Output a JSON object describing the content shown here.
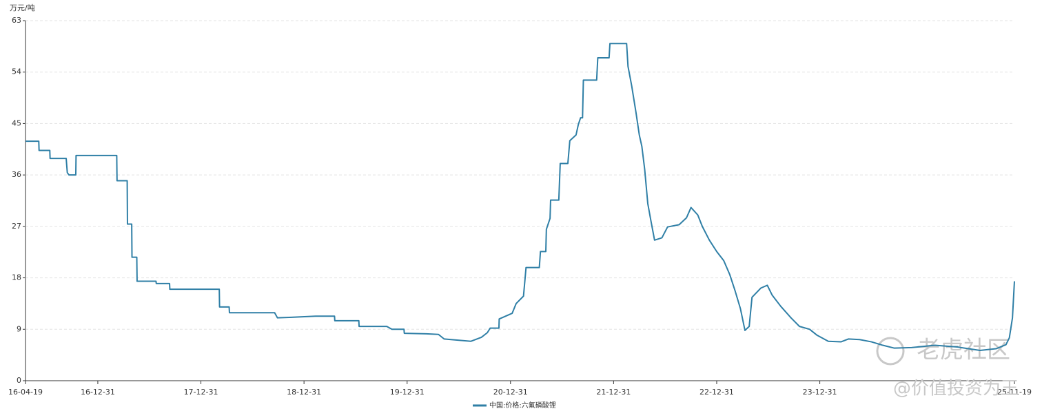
{
  "chart_data": {
    "type": "line",
    "y_label": "万元/吨",
    "x": [
      "16-04-19",
      "16-06-05",
      "16-06-06",
      "16-07-14",
      "16-07-15",
      "16-09-10",
      "16-09-14",
      "16-09-20",
      "16-10-14",
      "16-10-15",
      "17-03-08",
      "17-03-09",
      "17-04-14",
      "17-04-15",
      "17-04-30",
      "17-05-01",
      "17-05-18",
      "17-05-19",
      "17-07-25",
      "17-07-26",
      "17-09-11",
      "17-09-12",
      "18-03-06",
      "18-03-07",
      "18-04-10",
      "18-04-11",
      "18-09-18",
      "18-09-28",
      "18-11-17",
      "19-02-10",
      "19-04-18",
      "19-04-19",
      "19-07-13",
      "19-07-14",
      "19-10-20",
      "19-11-07",
      "19-12-20",
      "19-12-21",
      "20-03-08",
      "20-04-20",
      "20-05-10",
      "20-08-13",
      "20-09-19",
      "20-10-10",
      "20-10-20",
      "20-11-20",
      "20-11-21",
      "21-01-06",
      "21-01-20",
      "21-02-15",
      "21-02-24",
      "21-04-12",
      "21-04-16",
      "21-05-05",
      "21-05-07",
      "21-05-20",
      "21-05-22",
      "21-06-20",
      "21-06-25",
      "21-07-22",
      "21-07-29",
      "21-08-20",
      "21-08-28",
      "21-09-05",
      "21-09-12",
      "21-09-15",
      "21-11-01",
      "21-11-05",
      "21-12-15",
      "21-12-18",
      "22-02-15",
      "22-02-20",
      "22-03-05",
      "22-03-20",
      "22-04-01",
      "22-04-10",
      "22-04-20",
      "22-05-01",
      "22-05-12",
      "22-05-25",
      "22-06-20",
      "22-07-10",
      "22-08-20",
      "22-09-15",
      "22-10-01",
      "22-10-25",
      "22-11-10",
      "22-12-05",
      "22-12-31",
      "23-01-25",
      "23-02-15",
      "23-03-05",
      "23-03-25",
      "23-04-10",
      "23-04-25",
      "23-05-05",
      "23-06-05",
      "23-06-28",
      "23-07-15",
      "23-08-15",
      "23-09-20",
      "23-10-20",
      "23-11-25",
      "23-12-20",
      "24-01-30",
      "24-03-15",
      "24-04-10",
      "24-05-20",
      "24-07-01",
      "24-08-10",
      "24-09-20",
      "24-11-20",
      "25-02-10",
      "25-05-01",
      "25-07-20",
      "25-09-15",
      "25-10-20",
      "25-11-01",
      "25-11-12",
      "25-11-19"
    ],
    "series": [
      {
        "name": "中国:价格:六氟磷酸锂",
        "color": "#2f7fa6",
        "values": [
          41.9,
          41.9,
          40.3,
          40.3,
          38.9,
          38.9,
          36.4,
          36.0,
          36.0,
          39.4,
          39.4,
          35.0,
          35.0,
          27.4,
          27.4,
          21.6,
          21.6,
          17.4,
          17.4,
          17.0,
          17.0,
          16.0,
          16.0,
          12.9,
          12.9,
          11.9,
          11.9,
          11.0,
          11.1,
          11.3,
          11.3,
          10.5,
          10.5,
          9.5,
          9.5,
          9.0,
          9.0,
          8.3,
          8.2,
          8.1,
          7.3,
          6.9,
          7.6,
          8.4,
          9.2,
          9.2,
          10.8,
          11.8,
          13.5,
          14.8,
          19.8,
          19.8,
          22.6,
          22.6,
          26.5,
          28.4,
          31.6,
          31.6,
          38.0,
          38.0,
          42.0,
          43.0,
          44.8,
          46.0,
          46.0,
          52.6,
          52.6,
          56.5,
          56.5,
          59.0,
          59.0,
          55.0,
          51.6,
          47.0,
          43.0,
          41.0,
          37.0,
          31.0,
          28.0,
          24.6,
          25.0,
          26.9,
          27.3,
          28.5,
          30.3,
          29.0,
          27.0,
          24.6,
          22.6,
          21.0,
          18.6,
          15.9,
          12.6,
          8.8,
          9.5,
          14.6,
          16.2,
          16.7,
          15.0,
          13.0,
          11.0,
          9.5,
          9.0,
          8.0,
          6.9,
          6.8,
          7.3,
          7.2,
          6.8,
          6.2,
          5.7,
          5.8,
          6.2,
          5.9,
          5.3,
          5.6,
          6.3,
          7.5,
          11.0,
          17.4
        ]
      }
    ],
    "xlim": [
      "16-04-19",
      "25-11-19"
    ],
    "xticks": [
      "16-04-19",
      "16-12-31",
      "17-12-31",
      "18-12-31",
      "19-12-31",
      "20-12-31",
      "21-12-31",
      "22-12-31",
      "23-12-31",
      "25-11-19"
    ],
    "ylim": [
      0,
      63
    ],
    "yticks": [
      0,
      9,
      18,
      27,
      36,
      45,
      54,
      63
    ],
    "grid": true,
    "legend": "bottom"
  },
  "watermark": {
    "logo": "老虎社区",
    "handle": "@价值投资为王"
  }
}
